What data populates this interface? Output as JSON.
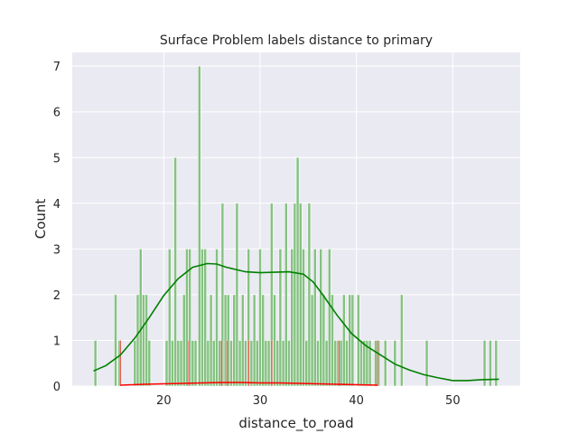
{
  "chart_data": {
    "type": "histogram",
    "title": "Surface Problem labels distance to primary",
    "xlabel": "distance_to_road",
    "ylabel": "Count",
    "xlim": [
      10.5,
      57.0
    ],
    "ylim": [
      0,
      7.3
    ],
    "xticks": [
      20,
      30,
      40,
      50
    ],
    "yticks": [
      0,
      1,
      2,
      3,
      4,
      5,
      6,
      7
    ],
    "grid": true,
    "background": "#eaeaf2",
    "series": [
      {
        "color": "#2ca02c",
        "bar_fill": "#7fbf7b",
        "kde_color": "#008000",
        "bin_width": 0.29,
        "bins": [
          {
            "x": 12.9,
            "count": 1
          },
          {
            "x": 15.0,
            "count": 2
          },
          {
            "x": 15.4,
            "count": 1
          },
          {
            "x": 17.0,
            "count": 1
          },
          {
            "x": 17.3,
            "count": 2
          },
          {
            "x": 17.6,
            "count": 3
          },
          {
            "x": 17.9,
            "count": 2
          },
          {
            "x": 18.2,
            "count": 2
          },
          {
            "x": 18.5,
            "count": 1
          },
          {
            "x": 20.3,
            "count": 1
          },
          {
            "x": 20.6,
            "count": 3
          },
          {
            "x": 20.9,
            "count": 1
          },
          {
            "x": 21.2,
            "count": 5
          },
          {
            "x": 21.5,
            "count": 1
          },
          {
            "x": 21.8,
            "count": 1
          },
          {
            "x": 22.1,
            "count": 2
          },
          {
            "x": 22.4,
            "count": 3
          },
          {
            "x": 22.7,
            "count": 3
          },
          {
            "x": 23.0,
            "count": 1
          },
          {
            "x": 23.3,
            "count": 1
          },
          {
            "x": 23.7,
            "count": 7
          },
          {
            "x": 24.0,
            "count": 3
          },
          {
            "x": 24.3,
            "count": 3
          },
          {
            "x": 24.6,
            "count": 1
          },
          {
            "x": 24.9,
            "count": 2
          },
          {
            "x": 25.2,
            "count": 1
          },
          {
            "x": 25.5,
            "count": 3
          },
          {
            "x": 25.8,
            "count": 1
          },
          {
            "x": 26.1,
            "count": 4
          },
          {
            "x": 26.4,
            "count": 2
          },
          {
            "x": 26.7,
            "count": 2
          },
          {
            "x": 27.0,
            "count": 1
          },
          {
            "x": 27.3,
            "count": 2
          },
          {
            "x": 27.6,
            "count": 4
          },
          {
            "x": 27.9,
            "count": 1
          },
          {
            "x": 28.2,
            "count": 2
          },
          {
            "x": 28.5,
            "count": 1
          },
          {
            "x": 28.8,
            "count": 3
          },
          {
            "x": 29.1,
            "count": 1
          },
          {
            "x": 29.4,
            "count": 2
          },
          {
            "x": 29.7,
            "count": 1
          },
          {
            "x": 30.0,
            "count": 3
          },
          {
            "x": 30.3,
            "count": 2
          },
          {
            "x": 30.6,
            "count": 1
          },
          {
            "x": 30.9,
            "count": 1
          },
          {
            "x": 31.2,
            "count": 4
          },
          {
            "x": 31.5,
            "count": 2
          },
          {
            "x": 31.8,
            "count": 1
          },
          {
            "x": 32.1,
            "count": 3
          },
          {
            "x": 32.4,
            "count": 1
          },
          {
            "x": 32.7,
            "count": 4
          },
          {
            "x": 33.0,
            "count": 1
          },
          {
            "x": 33.3,
            "count": 3
          },
          {
            "x": 33.6,
            "count": 4
          },
          {
            "x": 33.9,
            "count": 5
          },
          {
            "x": 34.2,
            "count": 4
          },
          {
            "x": 34.5,
            "count": 3
          },
          {
            "x": 34.8,
            "count": 1
          },
          {
            "x": 35.1,
            "count": 4
          },
          {
            "x": 35.4,
            "count": 2
          },
          {
            "x": 35.7,
            "count": 3
          },
          {
            "x": 36.0,
            "count": 1
          },
          {
            "x": 36.3,
            "count": 3
          },
          {
            "x": 36.6,
            "count": 2
          },
          {
            "x": 36.9,
            "count": 1
          },
          {
            "x": 37.2,
            "count": 3
          },
          {
            "x": 37.5,
            "count": 2
          },
          {
            "x": 37.8,
            "count": 1
          },
          {
            "x": 38.1,
            "count": 1
          },
          {
            "x": 38.4,
            "count": 1
          },
          {
            "x": 38.7,
            "count": 2
          },
          {
            "x": 39.0,
            "count": 1
          },
          {
            "x": 39.3,
            "count": 2
          },
          {
            "x": 39.6,
            "count": 2
          },
          {
            "x": 40.2,
            "count": 2
          },
          {
            "x": 40.5,
            "count": 1
          },
          {
            "x": 40.8,
            "count": 1
          },
          {
            "x": 41.1,
            "count": 1
          },
          {
            "x": 41.4,
            "count": 1
          },
          {
            "x": 42.0,
            "count": 1
          },
          {
            "x": 42.3,
            "count": 1
          },
          {
            "x": 43.0,
            "count": 1
          },
          {
            "x": 44.0,
            "count": 1
          },
          {
            "x": 44.7,
            "count": 2
          },
          {
            "x": 47.3,
            "count": 1
          },
          {
            "x": 53.3,
            "count": 1
          },
          {
            "x": 53.9,
            "count": 1
          },
          {
            "x": 54.5,
            "count": 1
          }
        ],
        "kde": [
          [
            12.7,
            0.33
          ],
          [
            14.0,
            0.45
          ],
          [
            15.5,
            0.68
          ],
          [
            17.0,
            1.05
          ],
          [
            18.5,
            1.5
          ],
          [
            20.0,
            1.98
          ],
          [
            21.5,
            2.35
          ],
          [
            23.0,
            2.6
          ],
          [
            24.5,
            2.68
          ],
          [
            25.5,
            2.67
          ],
          [
            26.5,
            2.6
          ],
          [
            27.5,
            2.55
          ],
          [
            28.5,
            2.5
          ],
          [
            30.0,
            2.48
          ],
          [
            31.5,
            2.49
          ],
          [
            33.0,
            2.5
          ],
          [
            34.5,
            2.45
          ],
          [
            35.5,
            2.28
          ],
          [
            36.5,
            2.0
          ],
          [
            38.0,
            1.55
          ],
          [
            39.5,
            1.15
          ],
          [
            41.0,
            0.88
          ],
          [
            42.5,
            0.68
          ],
          [
            44.0,
            0.48
          ],
          [
            45.5,
            0.35
          ],
          [
            47.0,
            0.25
          ],
          [
            48.5,
            0.18
          ],
          [
            50.0,
            0.12
          ],
          [
            51.5,
            0.12
          ],
          [
            53.0,
            0.14
          ],
          [
            54.8,
            0.15
          ]
        ]
      },
      {
        "color": "#e8453c",
        "bar_fill": "#e8453c",
        "kde_color": "#ff0000",
        "bin_width": 0.15,
        "bins": [
          {
            "x": 15.5,
            "count": 1
          },
          {
            "x": 22.6,
            "count": 1
          },
          {
            "x": 26.0,
            "count": 1
          },
          {
            "x": 26.6,
            "count": 1
          },
          {
            "x": 28.8,
            "count": 1
          },
          {
            "x": 31.2,
            "count": 1
          },
          {
            "x": 38.2,
            "count": 1
          },
          {
            "x": 42.2,
            "count": 1
          }
        ],
        "kde": [
          [
            15.5,
            0.02
          ],
          [
            18.0,
            0.04
          ],
          [
            20.0,
            0.05
          ],
          [
            22.0,
            0.06
          ],
          [
            24.0,
            0.07
          ],
          [
            26.0,
            0.08
          ],
          [
            28.0,
            0.08
          ],
          [
            30.0,
            0.07
          ],
          [
            32.0,
            0.07
          ],
          [
            34.0,
            0.06
          ],
          [
            36.0,
            0.05
          ],
          [
            38.0,
            0.04
          ],
          [
            40.0,
            0.03
          ],
          [
            42.2,
            0.02
          ]
        ]
      }
    ]
  }
}
